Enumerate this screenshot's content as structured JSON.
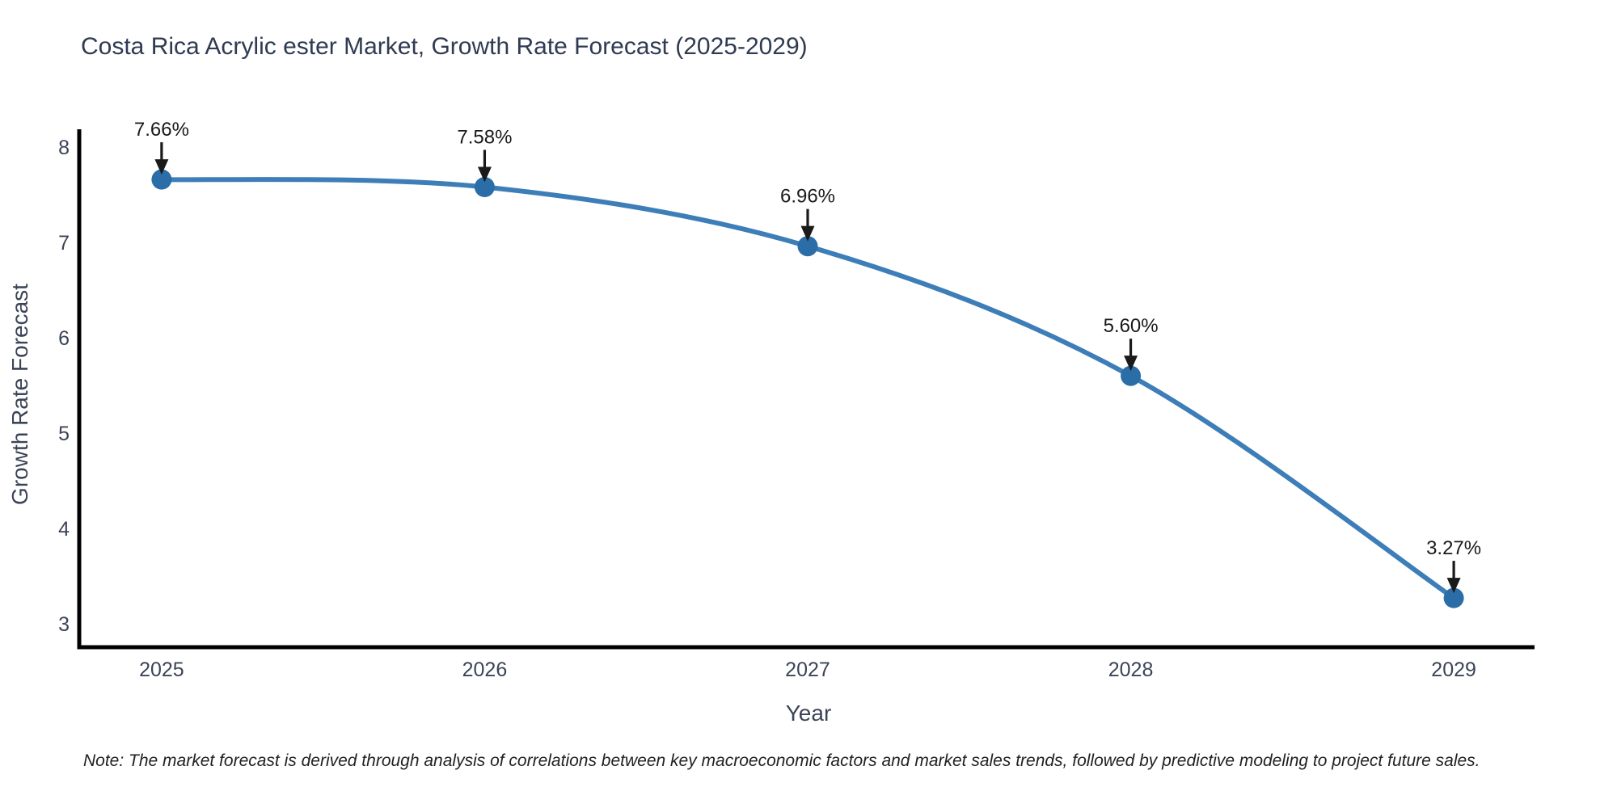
{
  "title": "Costa Rica Acrylic ester Market, Growth Rate Forecast (2025-2029)",
  "note": "Note: The market forecast is derived through analysis of correlations between key macroeconomic factors and market sales trends, followed by predictive modeling to project future sales.",
  "chart_data": {
    "type": "line",
    "line_shape": "spline",
    "x": [
      2025,
      2026,
      2027,
      2028,
      2029
    ],
    "values": [
      7.66,
      7.58,
      6.96,
      5.6,
      3.27
    ],
    "point_labels": [
      "7.66%",
      "7.58%",
      "6.96%",
      "5.60%",
      "3.27%"
    ],
    "title": "Costa Rica Acrylic ester Market, Growth Rate Forecast (2025-2029)",
    "xlabel": "Year",
    "ylabel": "Growth Rate Forecast",
    "xticks": [
      "2025",
      "2026",
      "2027",
      "2028",
      "2029"
    ],
    "xtick_values": [
      2025,
      2026,
      2027,
      2028,
      2029
    ],
    "yticks": [
      "3",
      "4",
      "5",
      "6",
      "7",
      "8"
    ],
    "ytick_values": [
      3,
      4,
      5,
      6,
      7,
      8
    ],
    "xlim": [
      2024.745,
      2029.25
    ],
    "ylim": [
      2.754,
      8.186
    ],
    "grid": false,
    "legend": false,
    "colors": {
      "line": "#3d7eb8",
      "marker": "#2b6da6",
      "axis": "#000000",
      "tick_label": "#3b4457",
      "annotation": "#1a1a1a",
      "background": "#ffffff"
    }
  }
}
